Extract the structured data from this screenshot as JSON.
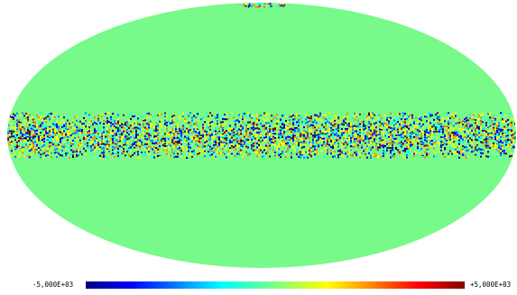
{
  "map": {
    "projection": "mollweide",
    "background_color": "#77fa89",
    "band": {
      "latitude_halfwidth_fraction": 0.085,
      "colormap": [
        "#00007f",
        "#0000ff",
        "#007fff",
        "#00ffff",
        "#7fff7f",
        "#ffff00",
        "#ff7f00",
        "#ff0000",
        "#7f0000"
      ]
    }
  },
  "colorbar": {
    "min_label": "-5,000E+03",
    "max_label": "+5,000E+03",
    "colormap": "jet"
  }
}
